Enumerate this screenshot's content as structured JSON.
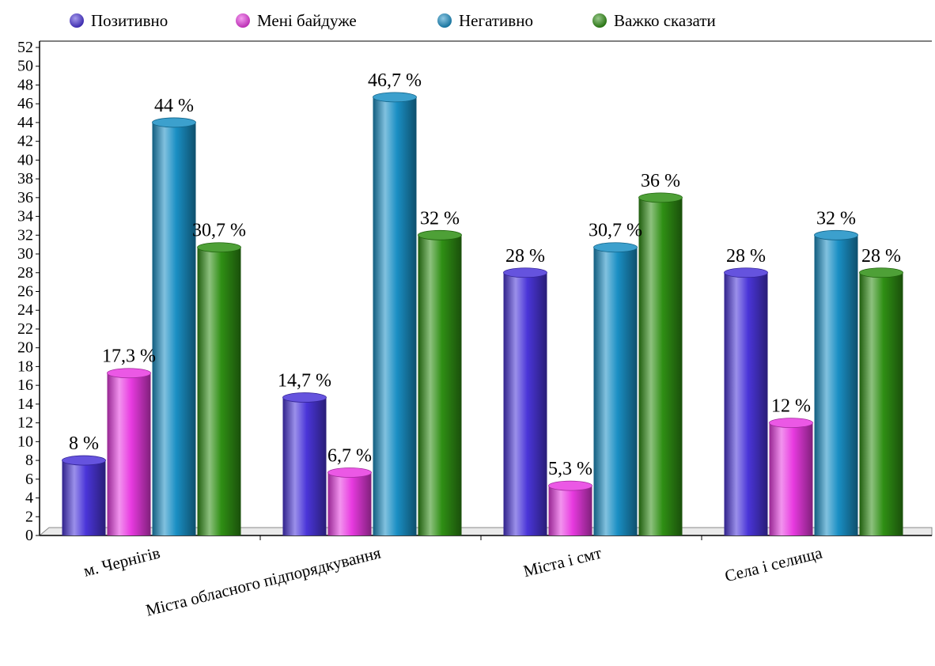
{
  "chart_data": {
    "type": "bar",
    "categories": [
      "м. Чернігів",
      "Міста обласного підпорядкування",
      "Міста і смт",
      "Села і селища"
    ],
    "series": [
      {
        "name": "Позитивно",
        "values": [
          8,
          14.7,
          28,
          28
        ],
        "labels": [
          "8 %",
          "14,7 %",
          "28 %",
          "28 %"
        ],
        "color": "#4a35d8"
      },
      {
        "name": "Мені байдуже",
        "values": [
          17.3,
          6.7,
          5.3,
          12
        ],
        "labels": [
          "17,3 %",
          "6,7 %",
          "5,3 %",
          "12 %"
        ],
        "color": "#e83ae0"
      },
      {
        "name": "Негативно",
        "values": [
          44,
          46.7,
          30.7,
          32
        ],
        "labels": [
          "44 %",
          "46,7 %",
          "30,7 %",
          "32 %"
        ],
        "color": "#1a8fc4"
      },
      {
        "name": "Важко сказати",
        "values": [
          30.7,
          32,
          36,
          28
        ],
        "labels": [
          "30,7 %",
          "32 %",
          "36 %",
          "28 %"
        ],
        "color": "#2f8f14"
      }
    ],
    "ylim": [
      0,
      52
    ],
    "ytick_step": 2,
    "legend_position": "top",
    "grid": false
  }
}
